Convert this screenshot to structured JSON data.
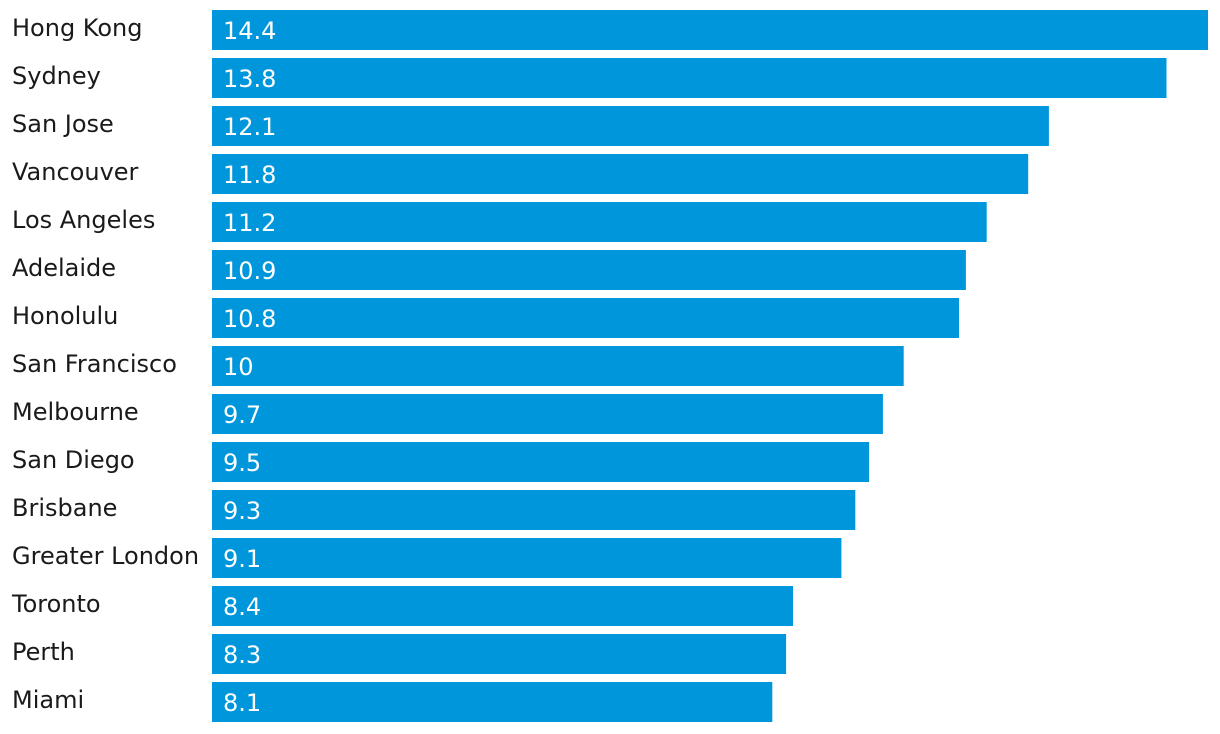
{
  "chart_data": {
    "type": "bar",
    "orientation": "horizontal",
    "categories": [
      "Hong Kong",
      "Sydney",
      "San Jose",
      "Vancouver",
      "Los Angeles",
      "Adelaide",
      "Honolulu",
      "San Francisco",
      "Melbourne",
      "San Diego",
      "Brisbane",
      "Greater London",
      "Toronto",
      "Perth",
      "Miami"
    ],
    "values": [
      14.4,
      13.8,
      12.1,
      11.8,
      11.2,
      10.9,
      10.8,
      10,
      9.7,
      9.5,
      9.3,
      9.1,
      8.4,
      8.3,
      8.1
    ],
    "value_labels": [
      "14.4",
      "13.8",
      "12.1",
      "11.8",
      "11.2",
      "10.9",
      "10.8",
      "10",
      "9.7",
      "9.5",
      "9.3",
      "9.1",
      "8.4",
      "8.3",
      "8.1"
    ],
    "title": "",
    "xlabel": "",
    "ylabel": "",
    "xlim": [
      0,
      14.4
    ],
    "grid": false,
    "legend": "none",
    "colors": {
      "bar": "#0096db",
      "value_text": "#ffffff",
      "category_text": "#1a1a1a",
      "background": "#ffffff"
    }
  }
}
